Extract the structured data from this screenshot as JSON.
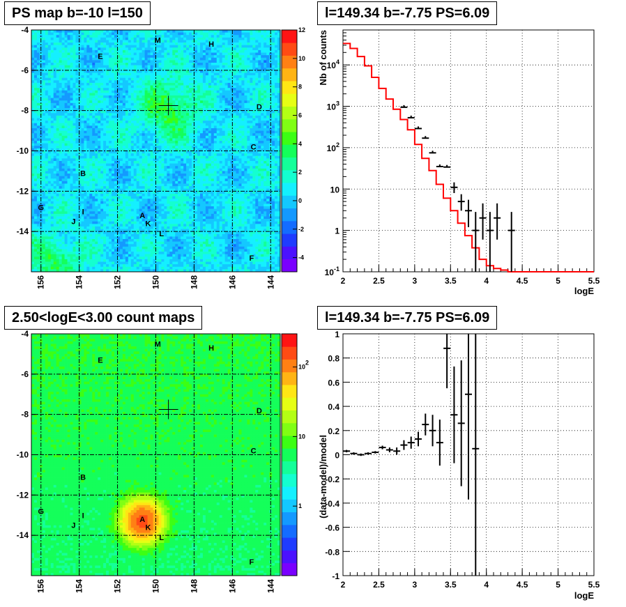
{
  "colors": {
    "model_line": "#ff0000",
    "data_marks": "#000000",
    "grid": "#000000"
  },
  "chart_data": [
    {
      "type": "heatmap",
      "title": "PS map b=-10 l=150",
      "xlim": [
        156.5,
        143.5
      ],
      "ylim": [
        -16,
        -4
      ],
      "xticks": [
        "156",
        "154",
        "152",
        "150",
        "148",
        "146",
        "144"
      ],
      "yticks": [
        "-4",
        "-6",
        "-8",
        "-10",
        "-12",
        "-14"
      ],
      "grid": true,
      "colorbar": {
        "min": -5,
        "max": 12,
        "ticks": [
          "12",
          "10",
          "8",
          "6",
          "4",
          "2",
          "0",
          "-2",
          "-4"
        ]
      },
      "cross": {
        "l": 149.34,
        "b": -7.75
      },
      "hotspots": [
        {
          "l": 149.3,
          "b": -7.9,
          "amp": 3.5,
          "sigma": 1.0
        },
        {
          "l": 155.2,
          "b": -15.5,
          "amp": 3.0,
          "sigma": 0.9
        }
      ],
      "sources": [
        {
          "label": "M",
          "l": 149.9,
          "b": -4.5
        },
        {
          "label": "H",
          "l": 147.1,
          "b": -4.7
        },
        {
          "label": "E",
          "l": 152.9,
          "b": -5.3
        },
        {
          "label": "D",
          "l": 144.6,
          "b": -7.8
        },
        {
          "label": "C",
          "l": 144.9,
          "b": -9.8
        },
        {
          "label": "B",
          "l": 153.8,
          "b": -11.1
        },
        {
          "label": "G",
          "l": 156.0,
          "b": -12.8
        },
        {
          "label": "I",
          "l": 153.8,
          "b": -13.0
        },
        {
          "label": "J",
          "l": 154.3,
          "b": -13.5
        },
        {
          "label": "A",
          "l": 150.7,
          "b": -13.2
        },
        {
          "label": "K",
          "l": 150.4,
          "b": -13.6
        },
        {
          "label": "L",
          "l": 149.7,
          "b": -14.1
        },
        {
          "label": "F",
          "l": 145.0,
          "b": -15.3
        }
      ]
    },
    {
      "type": "line",
      "title": "l=149.34 b=-7.75 PS=6.09",
      "xlabel": "logE",
      "ylabel": "Nb of counts",
      "xlim": [
        2,
        5.5
      ],
      "ylim": [
        0.1,
        70000
      ],
      "yscale": "log",
      "xticks": [
        "2",
        "2.5",
        "3",
        "3.5",
        "4",
        "4.5",
        "5",
        "5.5"
      ],
      "yticks": [
        "10^4",
        "10^3",
        "10^2",
        "10",
        "1",
        "10^-1"
      ],
      "grid": true,
      "model_histogram": {
        "edges": [
          2.0,
          2.1,
          2.2,
          2.3,
          2.4,
          2.5,
          2.6,
          2.7,
          2.8,
          2.9,
          3.0,
          3.1,
          3.2,
          3.3,
          3.4,
          3.5,
          3.6,
          3.7,
          3.8,
          3.9,
          4.0,
          4.1,
          4.2,
          4.3,
          4.4,
          5.5
        ],
        "values": [
          33000,
          25000,
          16000,
          9500,
          5000,
          2700,
          1500,
          850,
          480,
          270,
          120,
          55,
          28,
          13,
          6,
          3,
          1.5,
          0.75,
          0.38,
          0.2,
          0.14,
          0.12,
          0.11,
          0.1,
          0.1
        ]
      },
      "data_points": {
        "x": [
          2.85,
          2.95,
          3.05,
          3.15,
          3.25,
          3.35,
          3.45,
          3.55,
          3.65,
          3.75,
          3.85,
          3.95,
          4.05,
          4.15,
          4.35
        ],
        "y": [
          950,
          530,
          290,
          170,
          75,
          35,
          34,
          11,
          5,
          3,
          1,
          2,
          1,
          2,
          1
        ],
        "err_lo": [
          0,
          0,
          0,
          0,
          0,
          0,
          0,
          3,
          2,
          1.8,
          0.9,
          1.4,
          0.9,
          1.4,
          0.9
        ],
        "err_hi": [
          0,
          0,
          0,
          0,
          0,
          0,
          0,
          3.5,
          2.5,
          2.5,
          1.8,
          2.5,
          1.8,
          2.5,
          1.8
        ]
      }
    },
    {
      "type": "heatmap",
      "title": "2.50<logE<3.00 count maps",
      "xlim": [
        156.5,
        143.5
      ],
      "ylim": [
        -16,
        -4
      ],
      "xticks": [
        "156",
        "154",
        "152",
        "150",
        "148",
        "146",
        "144"
      ],
      "yticks": [
        "-4",
        "-6",
        "-8",
        "-10",
        "-12",
        "-14"
      ],
      "grid": true,
      "colorscale": "log",
      "colorbar": {
        "min": 0.1,
        "max": 300,
        "ticks": [
          "10^2",
          "10",
          "1"
        ]
      },
      "cross": {
        "l": 149.34,
        "b": -7.75
      },
      "hotspots": [
        {
          "l": 150.7,
          "b": -13.3,
          "amp": 150,
          "sigma": 0.55
        }
      ],
      "sources": [
        {
          "label": "M",
          "l": 149.9,
          "b": -4.5
        },
        {
          "label": "H",
          "l": 147.1,
          "b": -4.7
        },
        {
          "label": "E",
          "l": 152.9,
          "b": -5.3
        },
        {
          "label": "D",
          "l": 144.6,
          "b": -7.8
        },
        {
          "label": "C",
          "l": 144.9,
          "b": -9.8
        },
        {
          "label": "B",
          "l": 153.8,
          "b": -11.1
        },
        {
          "label": "G",
          "l": 156.0,
          "b": -12.8
        },
        {
          "label": "I",
          "l": 153.8,
          "b": -13.0
        },
        {
          "label": "J",
          "l": 154.3,
          "b": -13.5
        },
        {
          "label": "A",
          "l": 150.7,
          "b": -13.2
        },
        {
          "label": "K",
          "l": 150.4,
          "b": -13.6
        },
        {
          "label": "L",
          "l": 149.7,
          "b": -14.1
        },
        {
          "label": "F",
          "l": 145.0,
          "b": -15.3
        }
      ]
    },
    {
      "type": "scatter",
      "title": "l=149.34 b=-7.75 PS=6.09",
      "xlabel": "logE",
      "ylabel": "(data-model)/model",
      "xlim": [
        2,
        5.5
      ],
      "ylim": [
        -1,
        1
      ],
      "xticks": [
        "2",
        "2.5",
        "3",
        "3.5",
        "4",
        "4.5",
        "5",
        "5.5"
      ],
      "yticks": [
        "1",
        "0.8",
        "0.6",
        "0.4",
        "0.2",
        "0",
        "-0.2",
        "-0.4",
        "-0.6",
        "-0.8",
        "-1"
      ],
      "grid": true,
      "points": {
        "x": [
          2.05,
          2.15,
          2.25,
          2.35,
          2.45,
          2.55,
          2.65,
          2.75,
          2.85,
          2.95,
          3.05,
          3.15,
          3.25,
          3.35,
          3.45,
          3.55,
          3.65,
          3.75,
          3.85
        ],
        "y": [
          0.03,
          0.01,
          0.0,
          0.01,
          0.02,
          0.06,
          0.04,
          0.03,
          0.08,
          0.1,
          0.13,
          0.25,
          0.2,
          0.1,
          0.88,
          0.33,
          0.26,
          0.5,
          0.05
        ],
        "err": [
          0.01,
          0.01,
          0.01,
          0.01,
          0.01,
          0.015,
          0.02,
          0.03,
          0.04,
          0.05,
          0.06,
          0.09,
          0.13,
          0.19,
          0.33,
          0.4,
          0.52,
          0.87,
          1.2
        ]
      }
    }
  ]
}
